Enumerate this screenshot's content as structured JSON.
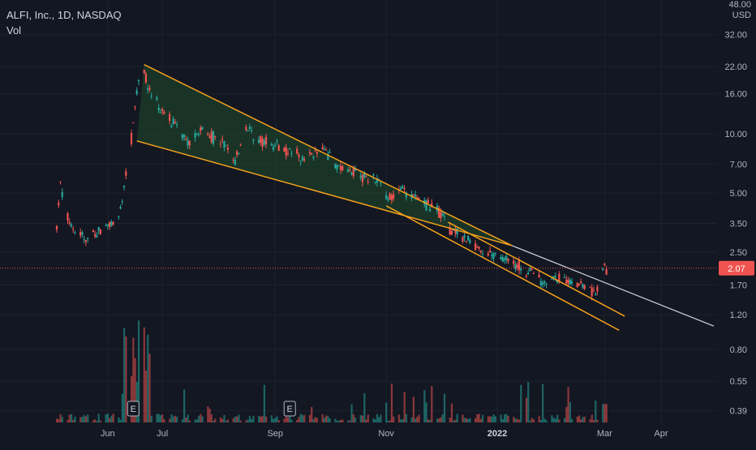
{
  "header": {
    "symbol_line": "ALFI, Inc., 1D, NASDAQ",
    "vol_label": "Vol"
  },
  "price_axis": {
    "top_label": "48.00",
    "currency": "USD",
    "ticks": [
      "32.00",
      "22.00",
      "16.00",
      "10.00",
      "7.00",
      "5.00",
      "3.50",
      "2.50",
      "1.70",
      "1.20",
      "0.80",
      "0.55",
      "0.39"
    ],
    "current_price": "2.07"
  },
  "time_axis": {
    "ticks": [
      "Jun",
      "Jul",
      "Sep",
      "Nov",
      "2022",
      "Mar",
      "Apr"
    ]
  },
  "event_markers": [
    {
      "label": "E",
      "date_index": 30
    },
    {
      "label": "E",
      "date_index": 92
    }
  ],
  "colors": {
    "background": "#131722",
    "up": "#26a69a",
    "down": "#ef5350",
    "trendline": "#f7a21b",
    "extension": "#d1d4dc",
    "wedge_fill": "#1f4d2b",
    "price_line": "#ef5350",
    "price_badge": "#ef5350"
  },
  "chart_data": {
    "type": "candlestick",
    "title": "ALFI, Inc., 1D, NASDAQ",
    "y_scale": "log",
    "ylim": [
      0.33,
      48
    ],
    "x_range": [
      "2021-05-04",
      "2022-04-30"
    ],
    "anchors": [
      [
        "2021-05-04",
        3.3
      ],
      [
        "2021-05-06",
        5.6
      ],
      [
        "2021-05-10",
        3.7
      ],
      [
        "2021-05-14",
        3.2
      ],
      [
        "2021-05-20",
        2.9
      ],
      [
        "2021-05-26",
        3.1
      ],
      [
        "2021-06-02",
        3.4
      ],
      [
        "2021-06-07",
        3.6
      ],
      [
        "2021-06-09",
        4.5
      ],
      [
        "2021-06-11",
        6.5
      ],
      [
        "2021-06-14",
        9.5
      ],
      [
        "2021-06-16",
        14.5
      ],
      [
        "2021-06-18",
        18
      ],
      [
        "2021-06-21",
        21
      ],
      [
        "2021-06-24",
        16
      ],
      [
        "2021-07-01",
        13
      ],
      [
        "2021-07-09",
        11
      ],
      [
        "2021-07-15",
        8.8
      ],
      [
        "2021-07-22",
        10.5
      ],
      [
        "2021-08-03",
        9
      ],
      [
        "2021-08-10",
        7.2
      ],
      [
        "2021-08-16",
        11
      ],
      [
        "2021-08-23",
        9.3
      ],
      [
        "2021-09-01",
        8.8
      ],
      [
        "2021-09-15",
        7.6
      ],
      [
        "2021-09-28",
        8.2
      ],
      [
        "2021-10-06",
        6.8
      ],
      [
        "2021-10-15",
        6.3
      ],
      [
        "2021-10-28",
        5.8
      ],
      [
        "2021-11-02",
        4.6
      ],
      [
        "2021-11-09",
        5.3
      ],
      [
        "2021-11-18",
        4.6
      ],
      [
        "2021-11-26",
        4.3
      ],
      [
        "2021-12-01",
        4.0
      ],
      [
        "2021-12-06",
        3.2
      ],
      [
        "2021-12-14",
        2.95
      ],
      [
        "2021-12-22",
        2.6
      ],
      [
        "2022-01-03",
        2.35
      ],
      [
        "2022-01-12",
        2.15
      ],
      [
        "2022-01-20",
        1.92
      ],
      [
        "2022-01-27",
        1.78
      ],
      [
        "2022-02-04",
        1.82
      ],
      [
        "2022-02-14",
        1.72
      ],
      [
        "2022-02-24",
        1.55
      ],
      [
        "2022-02-28",
        1.9
      ],
      [
        "2022-03-01",
        2.15
      ],
      [
        "2022-03-02",
        2.07
      ]
    ],
    "trendlines": [
      {
        "name": "wedge-upper",
        "from": [
          "2021-06-21",
          22.5
        ],
        "to": [
          "2022-01-09",
          2.7
        ]
      },
      {
        "name": "wedge-lower",
        "from": [
          "2021-06-17",
          9.2
        ],
        "to": [
          "2022-01-09",
          2.7
        ]
      },
      {
        "name": "channel-upper",
        "from": [
          "2021-12-05",
          3.55
        ],
        "to": [
          "2022-03-12",
          1.18
        ]
      },
      {
        "name": "channel-lower",
        "from": [
          "2021-11-01",
          4.3
        ],
        "to": [
          "2022-03-09",
          1.0
        ]
      },
      {
        "name": "breakout-extension",
        "from": [
          "2022-01-09",
          2.7
        ],
        "to": [
          "2022-04-30",
          1.05
        ]
      }
    ]
  }
}
